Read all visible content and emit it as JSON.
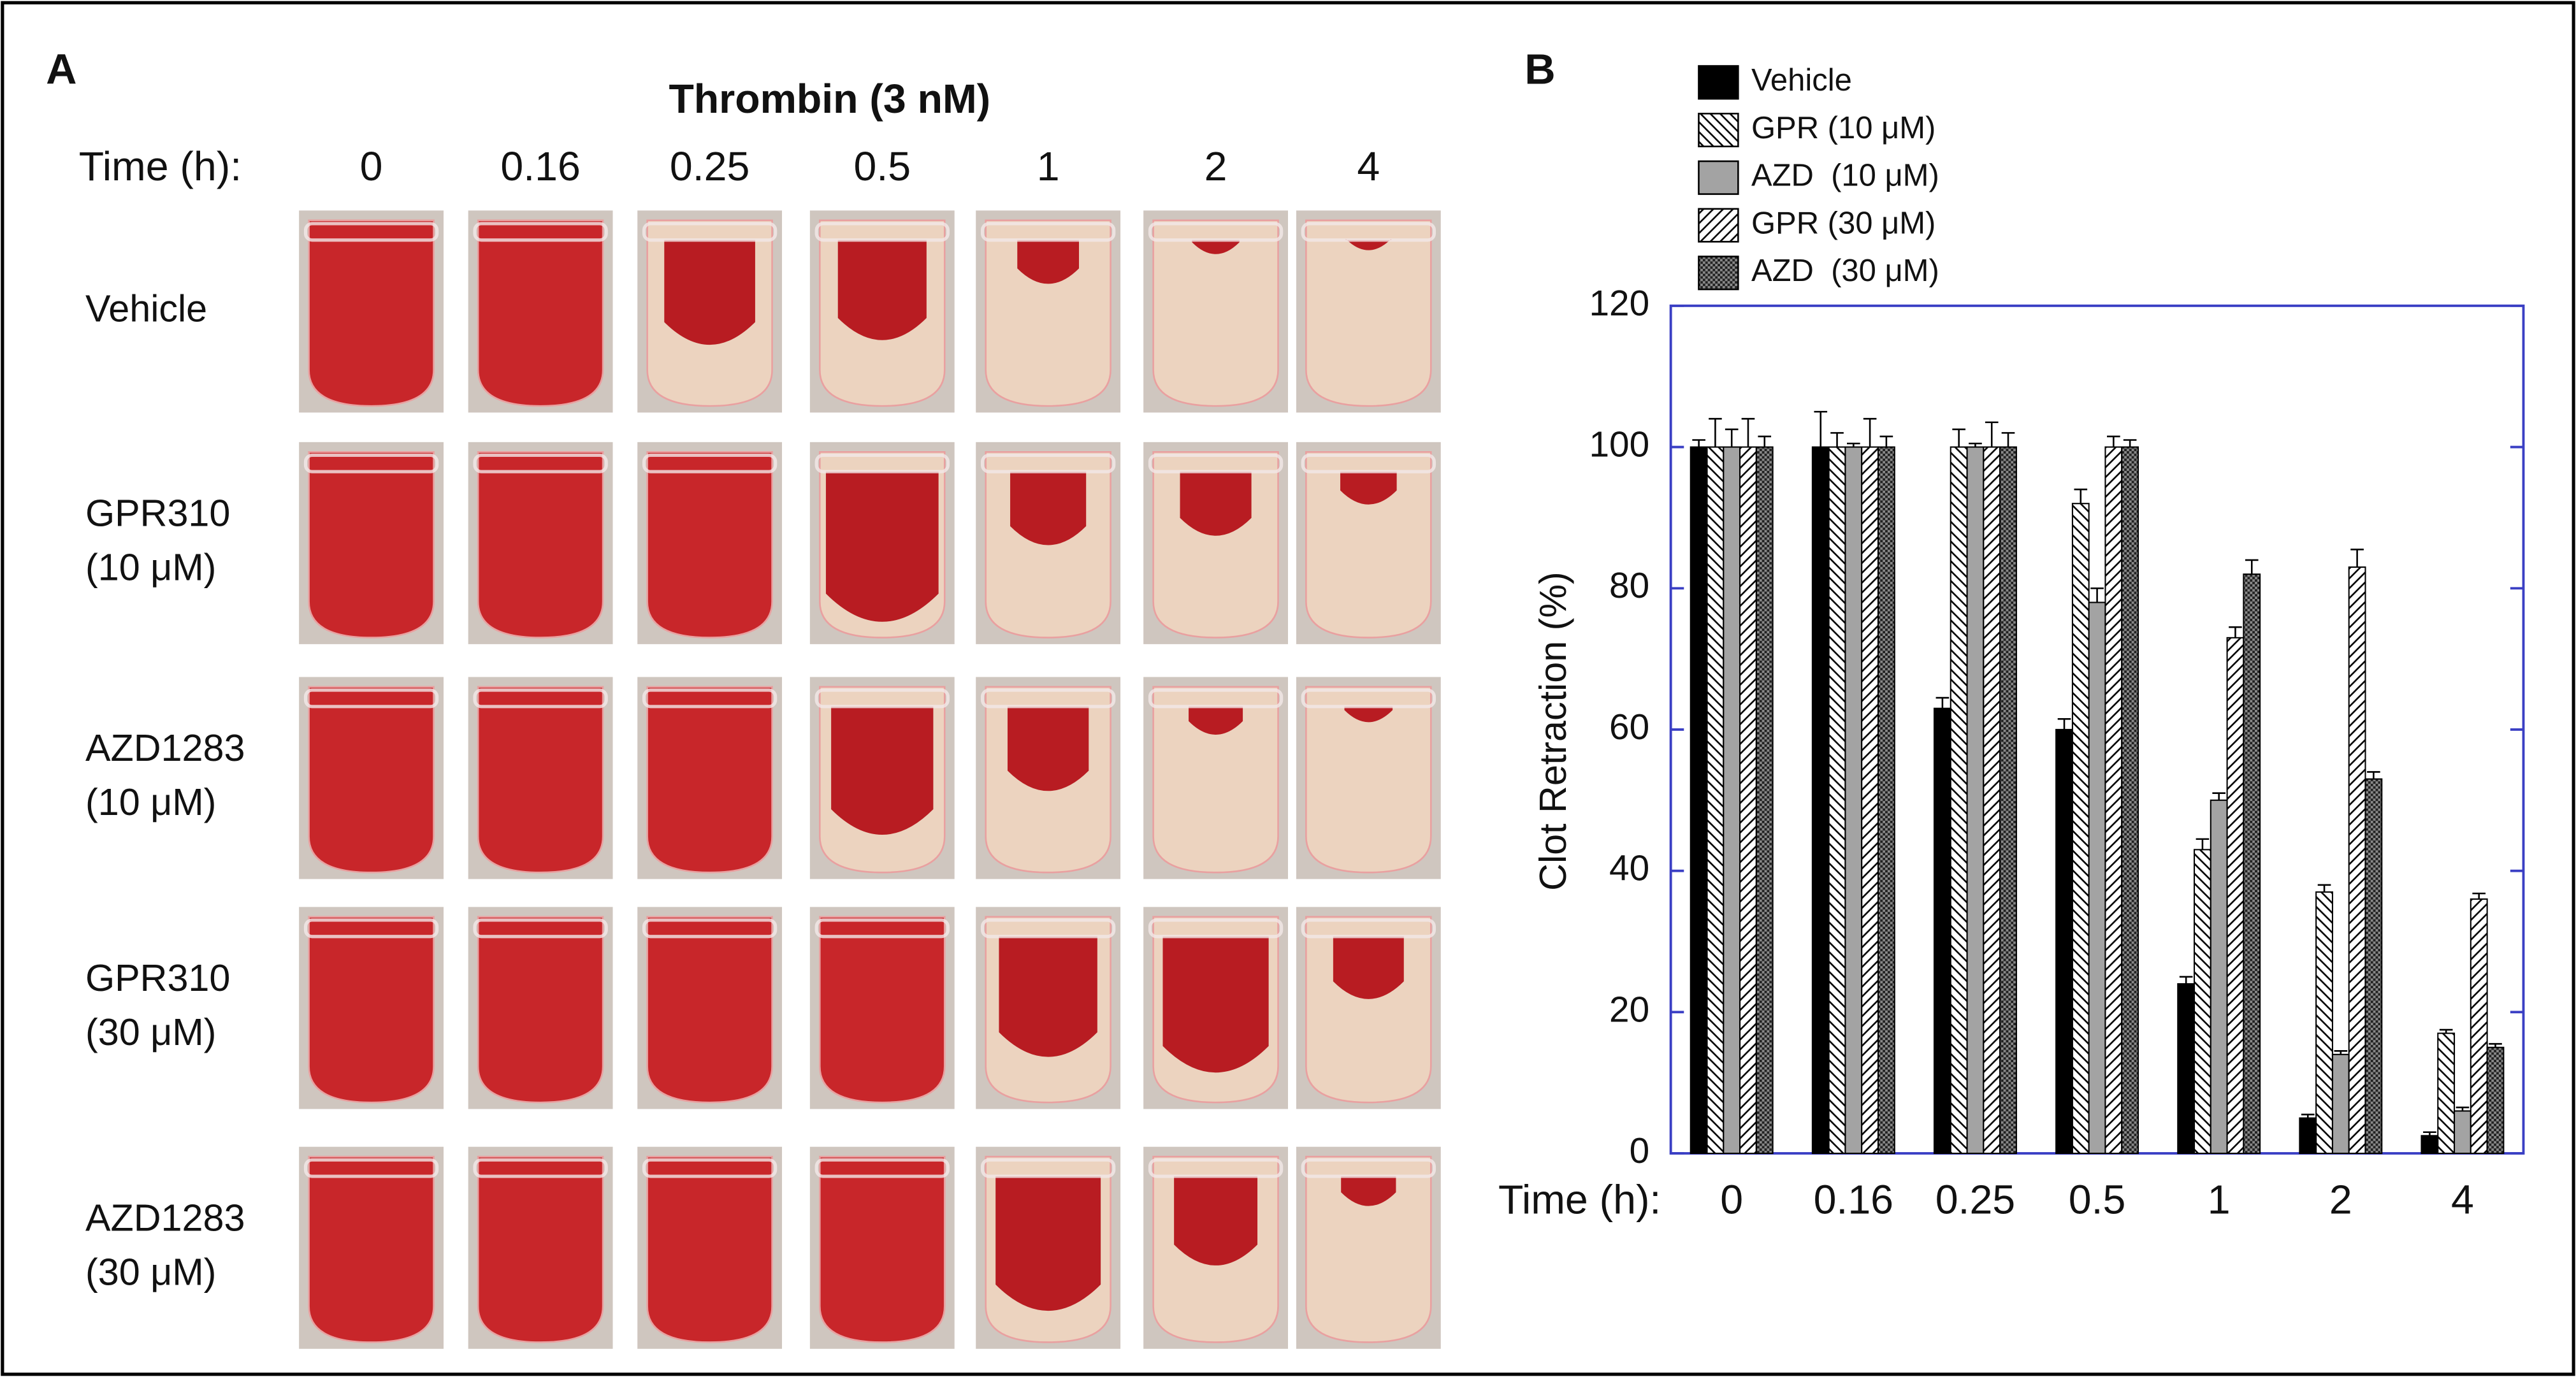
{
  "panel_a": {
    "label": "A",
    "title": "Thrombin (3 nM)",
    "time_label": "Time (h):",
    "times": [
      "0",
      "0.16",
      "0.25",
      "0.5",
      "1",
      "2",
      "4"
    ],
    "rows": [
      [
        "Vehicle"
      ],
      [
        "GPR310",
        "(10 μM)"
      ],
      [
        "AZD1283",
        "(10 μM)"
      ],
      [
        "GPR310",
        "(30 μM)"
      ],
      [
        "AZD1283",
        "(30 μM)"
      ]
    ]
  },
  "chart_data": {
    "type": "bar",
    "panel_label": "B",
    "y_label": "Clot Retraction (%)",
    "x_label": "Time (h):",
    "categories": [
      "0",
      "0.16",
      "0.25",
      "0.5",
      "1",
      "2",
      "4"
    ],
    "ylim": [
      0,
      120
    ],
    "yticks": [
      0,
      20,
      40,
      60,
      80,
      100,
      120
    ],
    "right_axis_ticks": true,
    "frame_color": "#3a3fc4",
    "series": [
      {
        "name": "Vehicle",
        "color": "#000000",
        "pattern": "solid",
        "values": [
          100,
          100,
          63,
          60,
          24,
          5,
          2.5
        ],
        "errors": [
          1,
          5,
          1.5,
          1.5,
          1,
          0.5,
          0.5
        ]
      },
      {
        "name": "GPR (10 μM)",
        "color": "#ffffff",
        "pattern": "hatch-back",
        "values": [
          100,
          100,
          100,
          92,
          43,
          37,
          17
        ],
        "errors": [
          4,
          2,
          2.5,
          2,
          1.5,
          1,
          0.5
        ]
      },
      {
        "name": "AZD  (10 μM)",
        "color": "#a3a3a3",
        "pattern": "solid",
        "values": [
          100,
          100,
          100,
          78,
          50,
          14,
          6
        ],
        "errors": [
          2.5,
          0.5,
          0.5,
          2,
          1,
          0.5,
          0.5
        ]
      },
      {
        "name": "GPR (30 μM)",
        "color": "#ffffff",
        "pattern": "hatch-forward",
        "values": [
          100,
          100,
          100,
          100,
          73,
          83,
          36
        ],
        "errors": [
          4,
          4,
          3.5,
          1.5,
          1.5,
          2.5,
          0.8
        ]
      },
      {
        "name": "AZD  (30 μM)",
        "color": "#5a5a5a",
        "pattern": "checker",
        "values": [
          100,
          100,
          100,
          100,
          82,
          53,
          15
        ],
        "errors": [
          1.5,
          1.5,
          2,
          1,
          2,
          1,
          0.5
        ]
      }
    ]
  }
}
